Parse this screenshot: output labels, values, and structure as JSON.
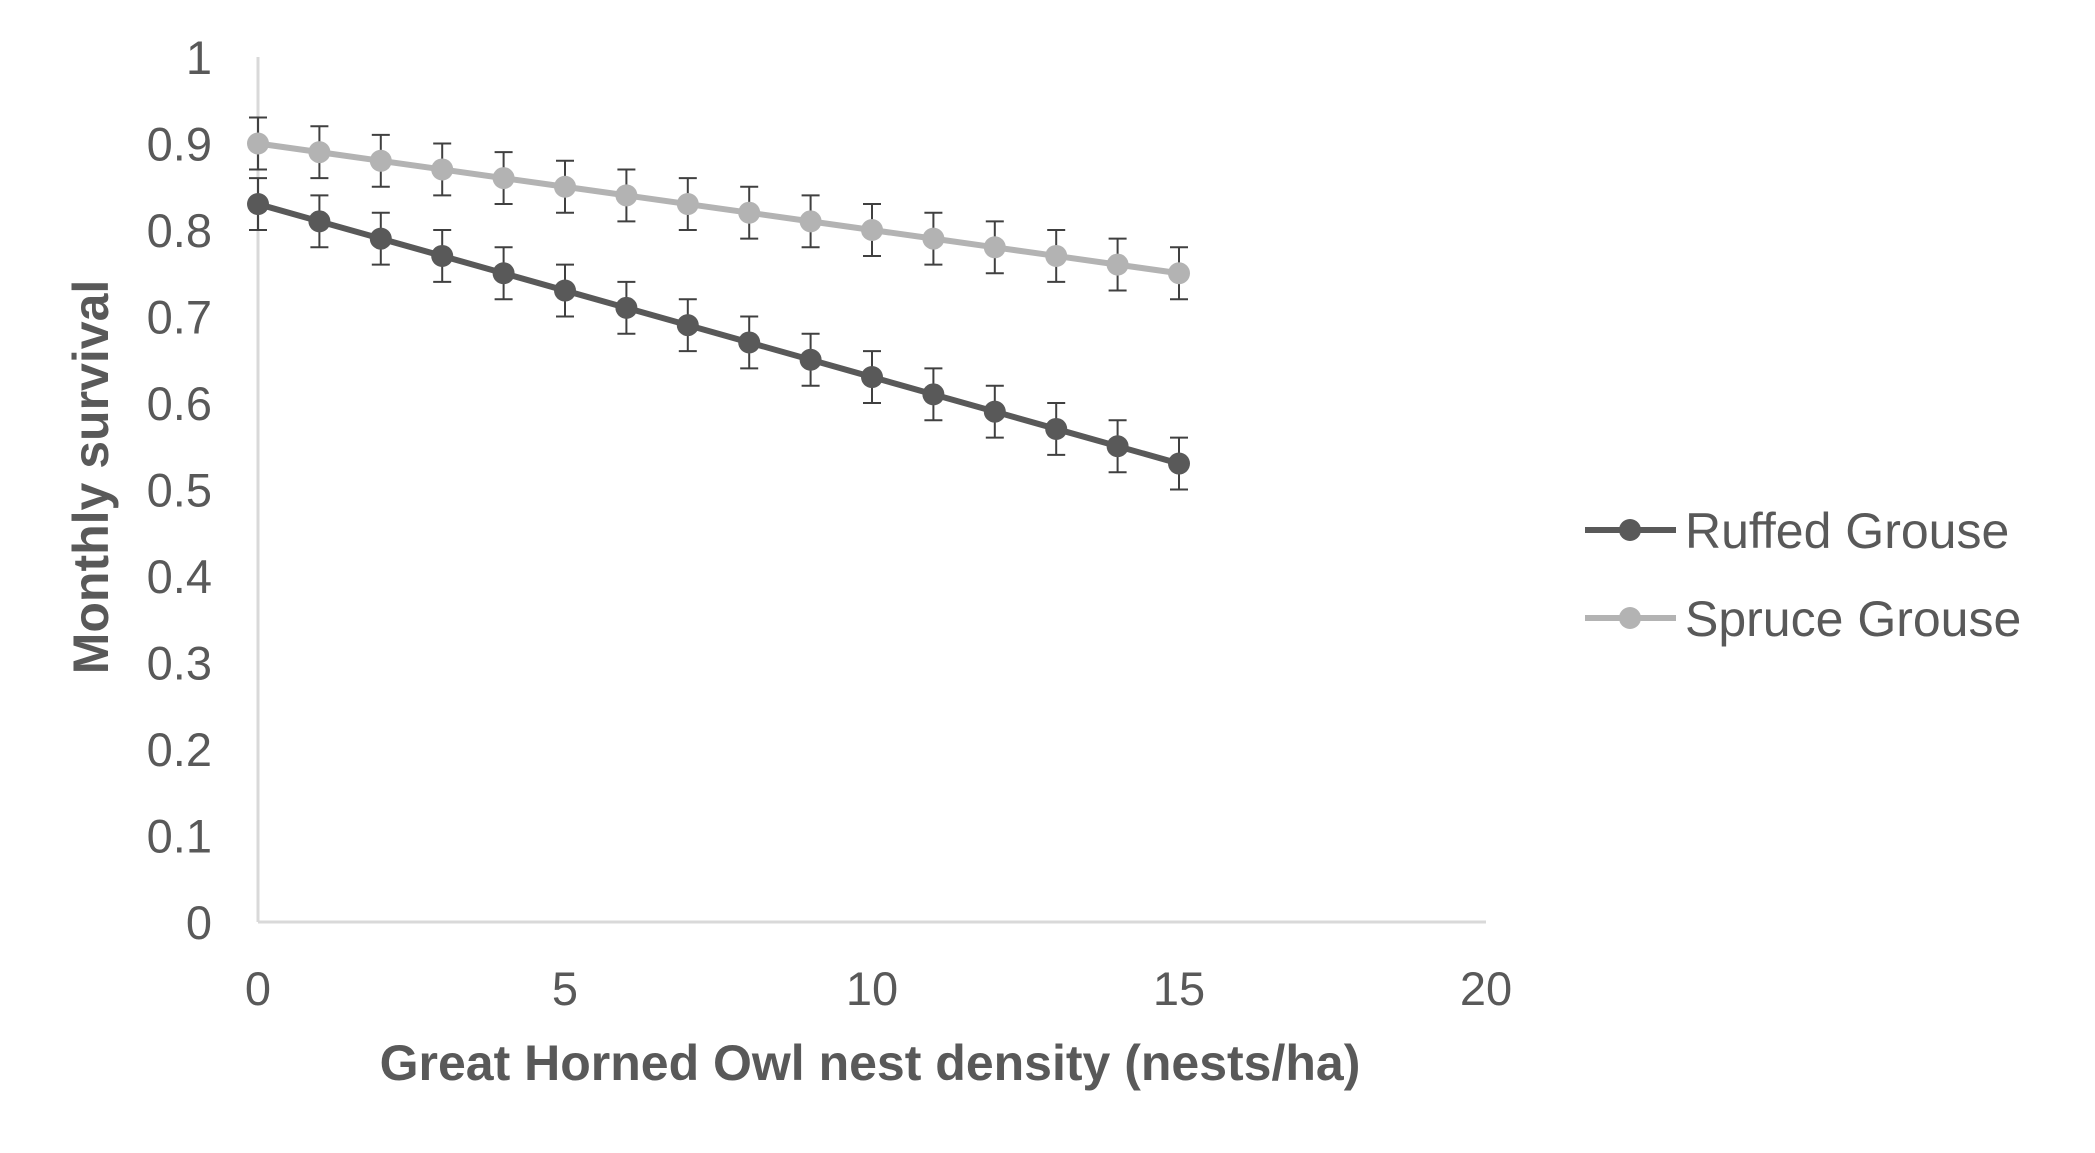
{
  "chart_data": {
    "type": "line",
    "title": "",
    "xlabel": "Great Horned Owl nest density (nests/ha)",
    "ylabel": "Monthly survival",
    "xlim": [
      0,
      20
    ],
    "ylim": [
      0,
      1
    ],
    "x_ticks": [
      "0",
      "5",
      "10",
      "15",
      "20"
    ],
    "y_ticks": [
      "0",
      "0.1",
      "0.2",
      "0.3",
      "0.4",
      "0.5",
      "0.6",
      "0.7",
      "0.8",
      "0.9",
      "1"
    ],
    "grid": false,
    "legend_position": "right",
    "error_bars": true,
    "error_bar_halfwidth": 0.03,
    "x": [
      0,
      1,
      2,
      3,
      4,
      5,
      6,
      7,
      8,
      9,
      10,
      11,
      12,
      13,
      14,
      15
    ],
    "series": [
      {
        "name": "Ruffed Grouse",
        "color": "#595959",
        "values": [
          0.83,
          0.81,
          0.79,
          0.77,
          0.75,
          0.73,
          0.71,
          0.69,
          0.67,
          0.65,
          0.63,
          0.61,
          0.59,
          0.57,
          0.55,
          0.53
        ]
      },
      {
        "name": "Spruce Grouse",
        "color": "#b3b3b3",
        "values": [
          0.9,
          0.89,
          0.88,
          0.87,
          0.86,
          0.85,
          0.84,
          0.83,
          0.82,
          0.81,
          0.8,
          0.79,
          0.78,
          0.77,
          0.76,
          0.75
        ]
      }
    ],
    "axis_color": "#d9d9d9",
    "error_bar_color": "#404040"
  }
}
